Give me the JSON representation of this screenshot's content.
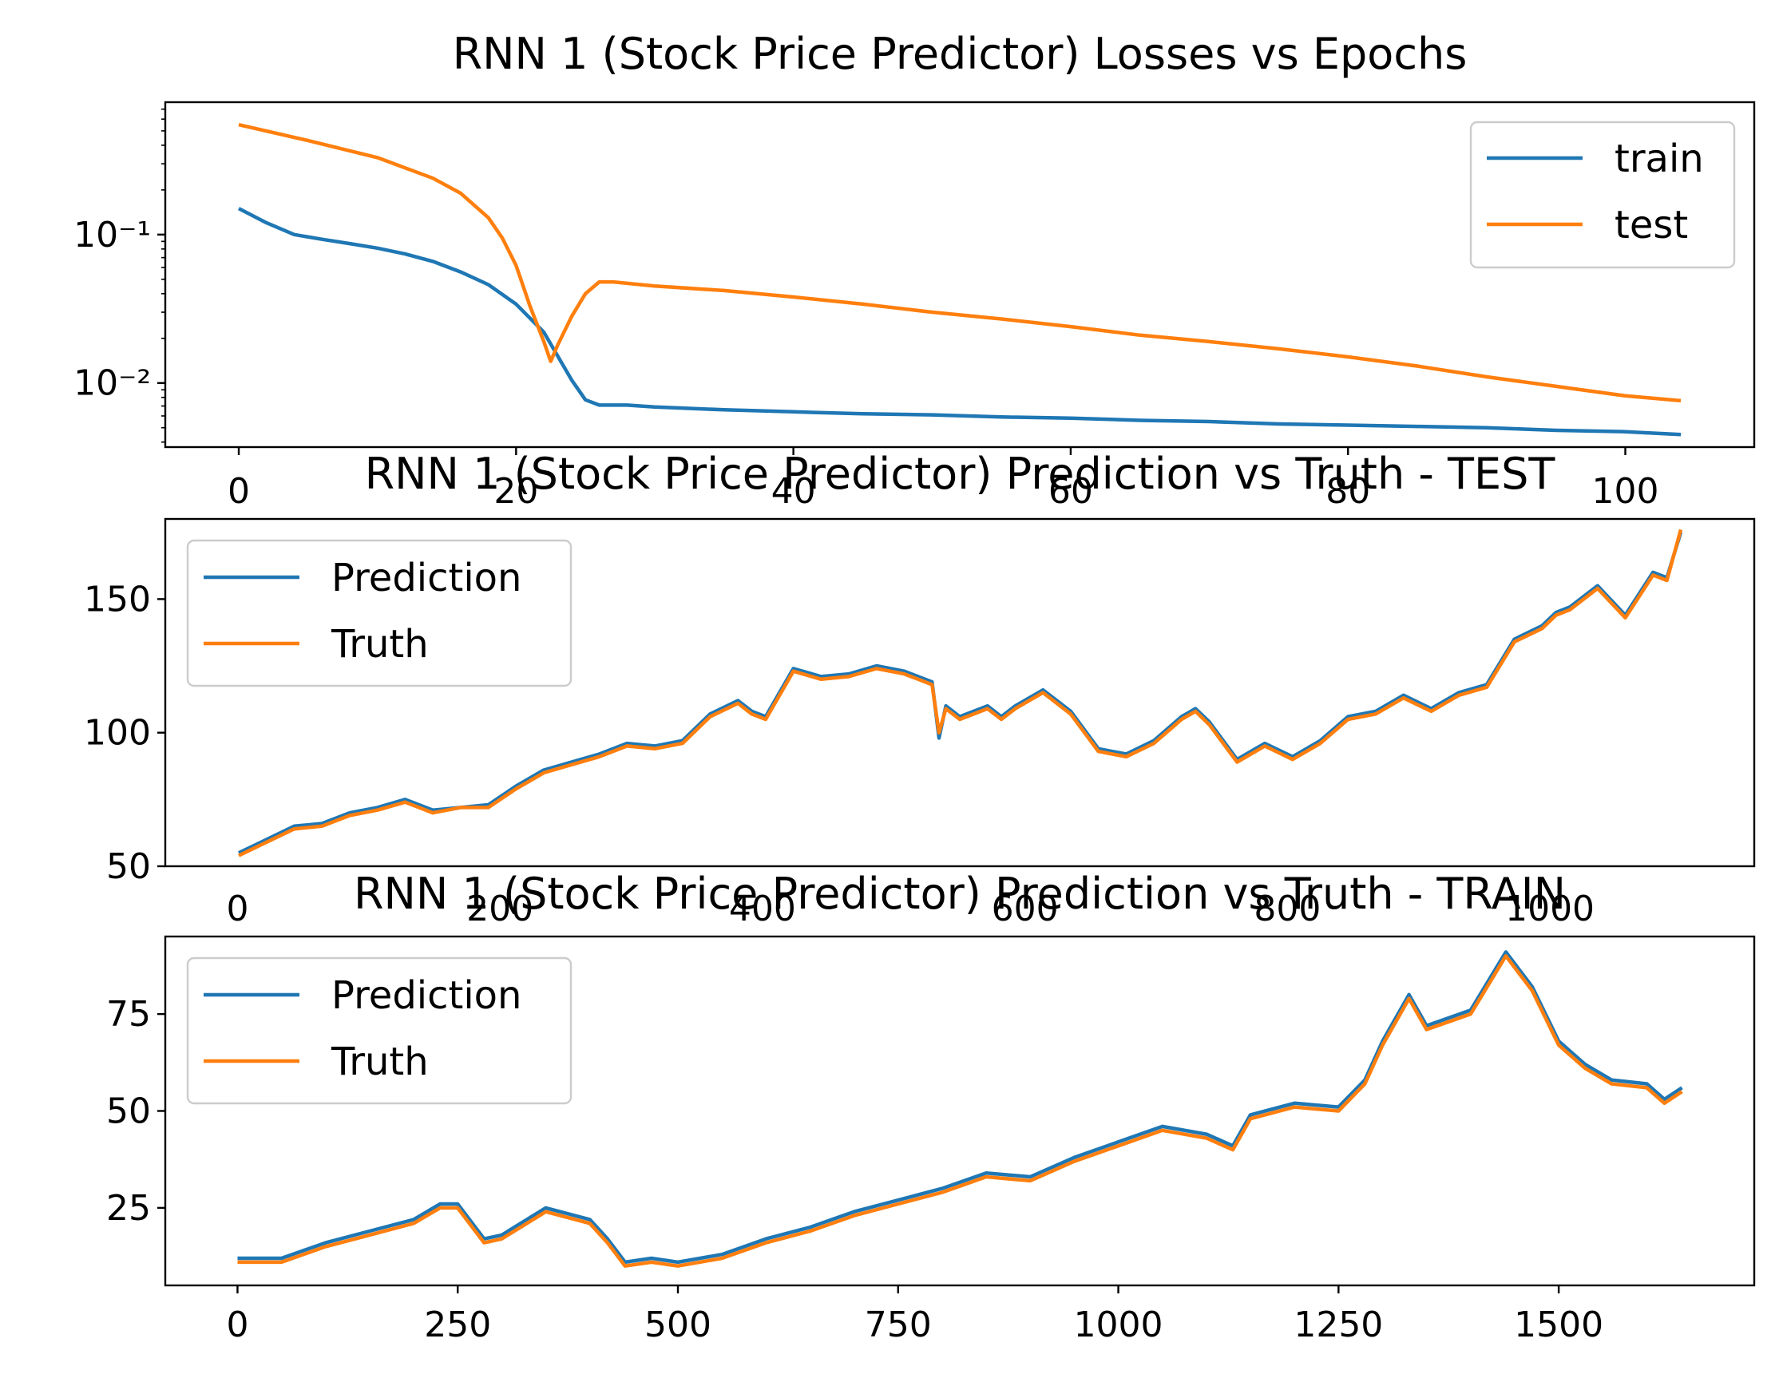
{
  "colors": {
    "series_1": "#1f77b4",
    "series_2": "#ff7f0e"
  },
  "chart_data": [
    {
      "type": "line",
      "title": "RNN 1 (Stock Price Predictor) Losses vs Epochs",
      "xlabel": "",
      "ylabel": "",
      "yscale": "log",
      "xlim": [
        -5.3,
        109.3
      ],
      "ylim": [
        0.0037,
        0.78
      ],
      "xticks": [
        "0",
        "20",
        "40",
        "60",
        "80",
        "100"
      ],
      "xtick_values": [
        0,
        20,
        40,
        60,
        80,
        100
      ],
      "xaxis_position": "bottom-only-labels-drawn-below-frame",
      "yticks": [
        "10⁻²",
        "10⁻¹"
      ],
      "ytick_values": [
        0.01,
        0.1
      ],
      "grid": false,
      "legend_position": "upper right",
      "series": [
        {
          "name": "train",
          "x": [
            0,
            2,
            4,
            6,
            8,
            10,
            12,
            14,
            16,
            18,
            20,
            22,
            24,
            25,
            26,
            28,
            30,
            35,
            40,
            45,
            50,
            55,
            60,
            65,
            70,
            75,
            80,
            85,
            90,
            95,
            100,
            104
          ],
          "values": [
            0.15,
            0.12,
            0.1,
            0.093,
            0.087,
            0.081,
            0.074,
            0.066,
            0.056,
            0.046,
            0.034,
            0.022,
            0.0105,
            0.0077,
            0.0071,
            0.0071,
            0.0069,
            0.0066,
            0.0064,
            0.0062,
            0.0061,
            0.0059,
            0.0058,
            0.0056,
            0.0055,
            0.0053,
            0.0052,
            0.0051,
            0.005,
            0.0048,
            0.0047,
            0.0045
          ]
        },
        {
          "name": "test",
          "x": [
            0,
            5,
            10,
            14,
            16,
            18,
            19,
            20,
            21,
            22,
            22.5,
            23,
            24,
            25,
            26,
            27,
            30,
            35,
            40,
            45,
            50,
            55,
            60,
            65,
            70,
            75,
            80,
            85,
            90,
            95,
            100,
            104
          ],
          "values": [
            0.55,
            0.43,
            0.33,
            0.24,
            0.19,
            0.13,
            0.095,
            0.062,
            0.033,
            0.019,
            0.014,
            0.018,
            0.028,
            0.04,
            0.048,
            0.048,
            0.045,
            0.042,
            0.038,
            0.034,
            0.03,
            0.027,
            0.024,
            0.021,
            0.019,
            0.017,
            0.015,
            0.013,
            0.011,
            0.0095,
            0.0082,
            0.0076
          ]
        }
      ]
    },
    {
      "type": "line",
      "title": "RNN 1 (Stock Price Predictor) Prediction vs Truth - TEST",
      "xlabel": "",
      "ylabel": "",
      "xlim": [
        -5.3,
        109.3
      ],
      "ylim": [
        50,
        180
      ],
      "yticks": [
        "50",
        "100",
        "150"
      ],
      "ytick_values": [
        50,
        100,
        150
      ],
      "grid": false,
      "legend_position": "upper left",
      "series": [
        {
          "name": "Prediction",
          "x": [
            0,
            2,
            4,
            6,
            8,
            10,
            12,
            14,
            16,
            18,
            20,
            22,
            24,
            26,
            28,
            30,
            32,
            33,
            34,
            36,
            37,
            38,
            40,
            42,
            44,
            46,
            48,
            50,
            50.5,
            51,
            52,
            54,
            55,
            56,
            58,
            60,
            62,
            64,
            66,
            68,
            69,
            70,
            72,
            74,
            76,
            78,
            80,
            82,
            84,
            86,
            88,
            90,
            92,
            94,
            95,
            96,
            98,
            100,
            102,
            103,
            104
          ],
          "values": [
            55,
            60,
            65,
            66,
            70,
            72,
            75,
            71,
            72,
            73,
            80,
            86,
            89,
            92,
            96,
            95,
            97,
            102,
            107,
            112,
            108,
            106,
            124,
            121,
            122,
            125,
            123,
            119,
            98,
            110,
            106,
            110,
            106,
            110,
            116,
            108,
            94,
            92,
            97,
            106,
            109,
            104,
            90,
            96,
            91,
            97,
            106,
            108,
            114,
            109,
            115,
            118,
            135,
            140,
            145,
            147,
            155,
            144,
            160,
            158,
            175
          ]
        },
        {
          "name": "Truth",
          "x": [
            0,
            2,
            4,
            6,
            8,
            10,
            12,
            14,
            16,
            18,
            20,
            22,
            24,
            26,
            28,
            30,
            32,
            33,
            34,
            36,
            37,
            38,
            40,
            42,
            44,
            46,
            48,
            50,
            50.5,
            51,
            52,
            54,
            55,
            56,
            58,
            60,
            62,
            64,
            66,
            68,
            69,
            70,
            72,
            74,
            76,
            78,
            80,
            82,
            84,
            86,
            88,
            90,
            92,
            94,
            95,
            96,
            98,
            100,
            102,
            103,
            104
          ],
          "values": [
            54,
            59,
            64,
            65,
            69,
            71,
            74,
            70,
            72,
            72,
            79,
            85,
            88,
            91,
            95,
            94,
            96,
            101,
            106,
            111,
            107,
            105,
            123,
            120,
            121,
            124,
            122,
            118,
            100,
            109,
            105,
            109,
            105,
            109,
            115,
            107,
            93,
            91,
            96,
            105,
            108,
            103,
            89,
            95,
            90,
            96,
            105,
            107,
            113,
            108,
            114,
            117,
            134,
            139,
            144,
            146,
            154,
            143,
            159,
            157,
            176
          ]
        }
      ]
    },
    {
      "type": "line",
      "title": "RNN 1 (Stock Price Predictor) Prediction vs Truth - TRAIN",
      "xlabel": "",
      "ylabel": "",
      "xlim": [
        -82,
        1722
      ],
      "ylim": [
        5,
        95
      ],
      "top_xticks": [
        "0",
        "200",
        "400",
        "600",
        "800",
        "1000"
      ],
      "top_xtick_values": [
        0,
        200,
        400,
        600,
        800,
        1000
      ],
      "top_xtick_scale": "top tick 1000 sits at bottom-axis value ≈1490",
      "xticks": [
        "0",
        "250",
        "500",
        "750",
        "1000",
        "1250",
        "1500"
      ],
      "xtick_values": [
        0,
        250,
        500,
        750,
        1000,
        1250,
        1500
      ],
      "yticks": [
        "25",
        "50",
        "75"
      ],
      "ytick_values": [
        25,
        50,
        75
      ],
      "grid": false,
      "legend_position": "upper left",
      "series": [
        {
          "name": "Prediction",
          "x": [
            0,
            50,
            100,
            150,
            200,
            230,
            250,
            280,
            300,
            350,
            400,
            420,
            440,
            470,
            500,
            550,
            600,
            650,
            700,
            750,
            800,
            850,
            900,
            950,
            1000,
            1050,
            1100,
            1130,
            1150,
            1200,
            1250,
            1280,
            1300,
            1330,
            1350,
            1400,
            1440,
            1470,
            1500,
            1530,
            1560,
            1600,
            1620,
            1640
          ],
          "values": [
            12,
            12,
            16,
            19,
            22,
            26,
            26,
            17,
            18,
            25,
            22,
            17,
            11,
            12,
            11,
            13,
            17,
            20,
            24,
            27,
            30,
            34,
            33,
            38,
            42,
            46,
            44,
            41,
            49,
            52,
            51,
            58,
            68,
            80,
            72,
            76,
            91,
            82,
            68,
            62,
            58,
            57,
            53,
            56
          ]
        },
        {
          "name": "Truth",
          "x": [
            0,
            50,
            100,
            150,
            200,
            230,
            250,
            280,
            300,
            350,
            400,
            420,
            440,
            470,
            500,
            550,
            600,
            650,
            700,
            750,
            800,
            850,
            900,
            950,
            1000,
            1050,
            1100,
            1130,
            1150,
            1200,
            1250,
            1280,
            1300,
            1330,
            1350,
            1400,
            1440,
            1470,
            1500,
            1530,
            1560,
            1600,
            1620,
            1640
          ],
          "values": [
            11,
            11,
            15,
            18,
            21,
            25,
            25,
            16,
            17,
            24,
            21,
            16,
            10,
            11,
            10,
            12,
            16,
            19,
            23,
            26,
            29,
            33,
            32,
            37,
            41,
            45,
            43,
            40,
            48,
            51,
            50,
            57,
            67,
            79,
            71,
            75,
            90,
            81,
            67,
            61,
            57,
            56,
            52,
            55
          ]
        }
      ]
    }
  ]
}
